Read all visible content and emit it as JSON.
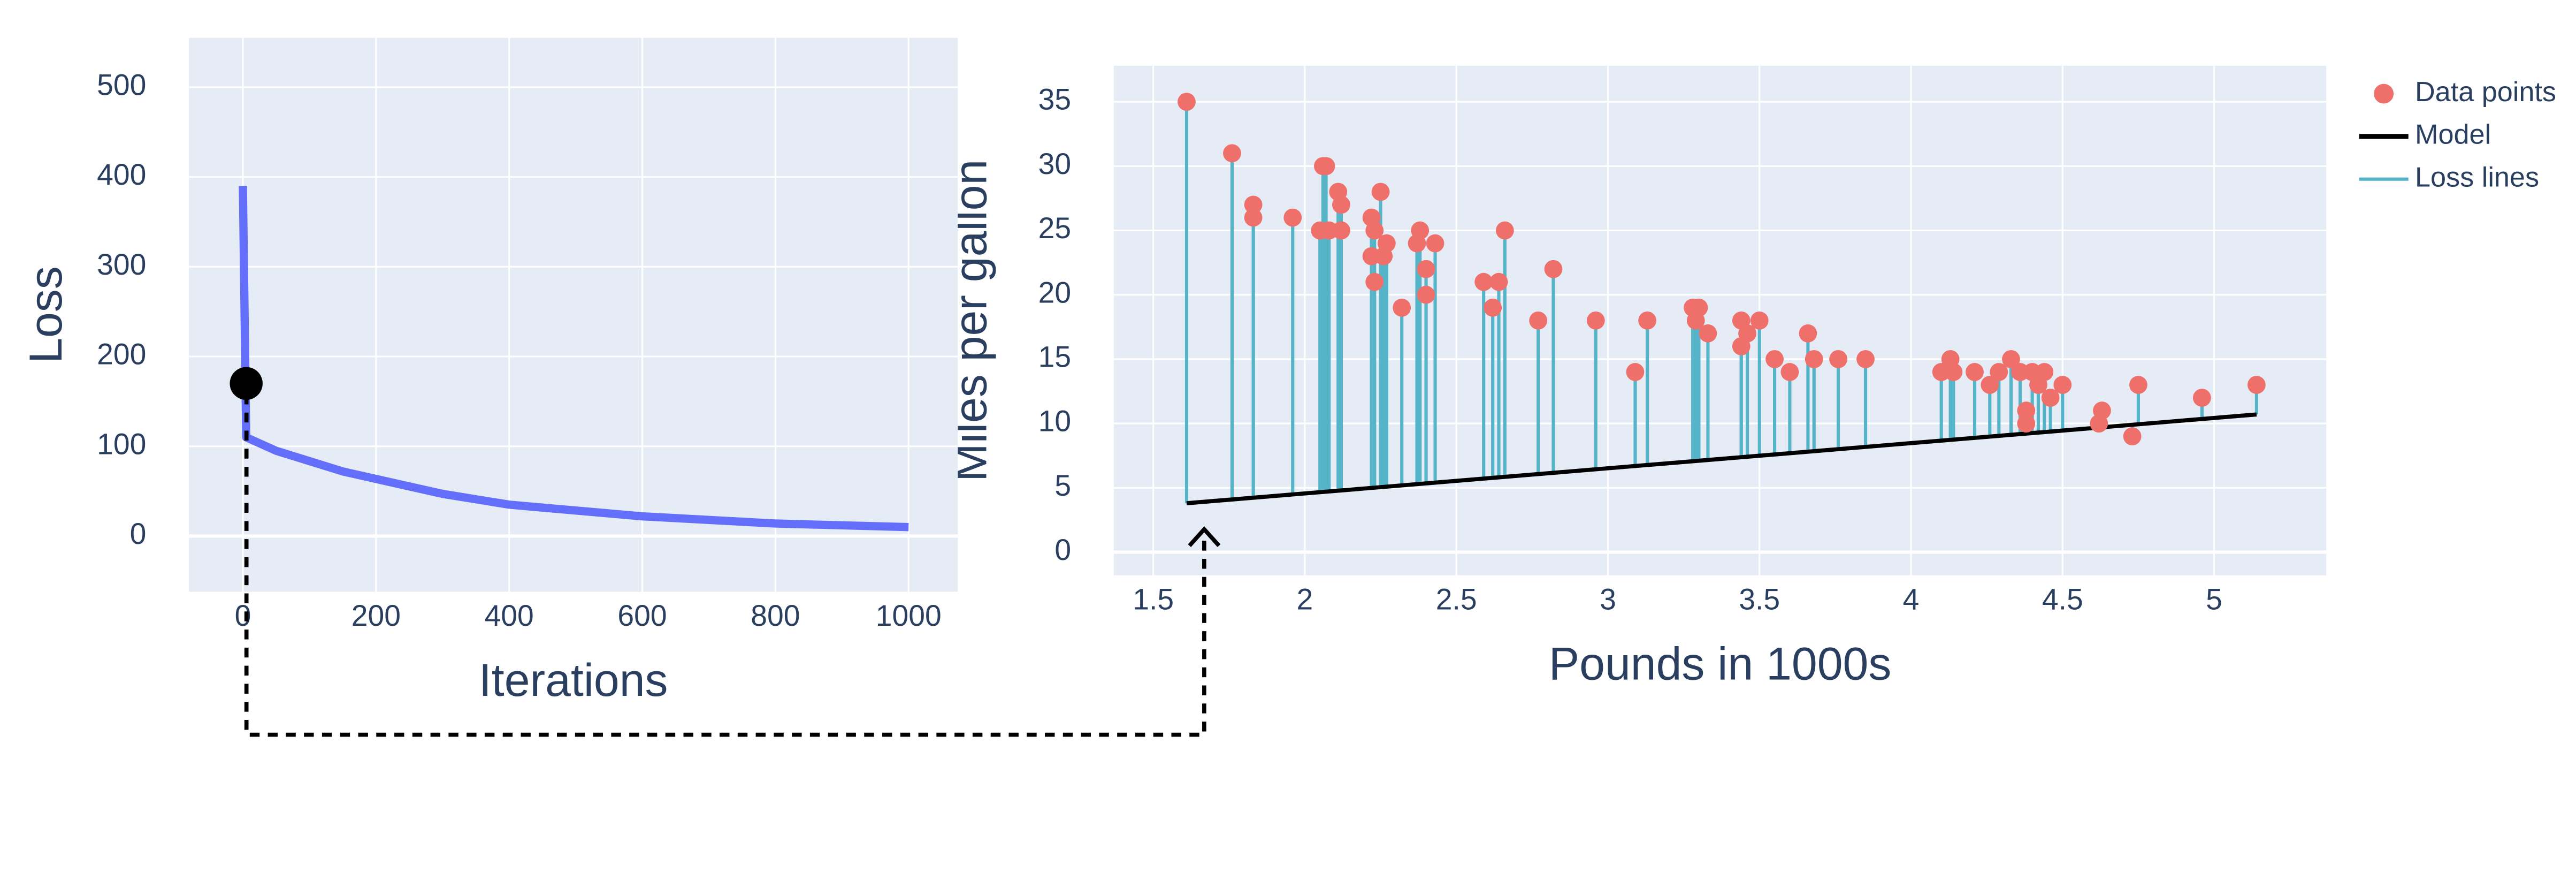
{
  "chart_data": [
    {
      "type": "line",
      "x_label": "Iterations",
      "y_label": "Loss",
      "xlim": [
        -81,
        1074
      ],
      "ylim": [
        -62,
        555
      ],
      "xticks": [
        0,
        200,
        400,
        600,
        800,
        1000
      ],
      "yticks": [
        0,
        100,
        200,
        300,
        400,
        500
      ],
      "grid": true,
      "series": [
        {
          "name": "Loss",
          "color": "#636efa",
          "x": [
            0,
            5,
            50,
            150,
            300,
            400,
            600,
            800,
            1000
          ],
          "values": [
            390,
            110,
            95,
            72,
            47,
            35,
            22,
            14,
            10
          ]
        }
      ],
      "highlight": {
        "x": 5,
        "y": 170,
        "color": "#000000"
      }
    },
    {
      "type": "scatter",
      "x_label": "Pounds in 1000s",
      "y_label": "Miles per gallon",
      "xlim": [
        1.37,
        5.37
      ],
      "ylim": [
        -1.8,
        37.8
      ],
      "xticks": [
        1.5,
        2,
        2.5,
        3,
        3.5,
        4,
        4.5,
        5
      ],
      "yticks": [
        0,
        5,
        10,
        15,
        20,
        25,
        30,
        35
      ],
      "grid": true,
      "legend": "outside-top-right",
      "series": [
        {
          "name": "Data points",
          "type": "scatter",
          "color": "#ef6f6a",
          "x": [
            1.61,
            1.76,
            1.83,
            1.83,
            1.96,
            2.05,
            2.06,
            2.07,
            2.08,
            2.11,
            2.12,
            2.12,
            2.22,
            2.22,
            2.23,
            2.23,
            2.25,
            2.26,
            2.27,
            2.32,
            2.37,
            2.38,
            2.4,
            2.4,
            2.43,
            2.59,
            2.62,
            2.64,
            2.66,
            2.77,
            2.82,
            2.96,
            3.09,
            3.13,
            3.28,
            3.29,
            3.3,
            3.33,
            3.44,
            3.44,
            3.46,
            3.5,
            3.55,
            3.6,
            3.66,
            3.68,
            3.76,
            3.85,
            4.1,
            4.13,
            4.14,
            4.21,
            4.26,
            4.29,
            4.33,
            4.36,
            4.38,
            4.38,
            4.4,
            4.42,
            4.44,
            4.46,
            4.5,
            4.62,
            4.63,
            4.73,
            4.75,
            4.96,
            5.14
          ],
          "values": [
            35,
            31,
            27,
            26,
            26,
            25,
            30,
            30,
            25,
            28,
            27,
            25,
            26,
            23,
            25,
            21,
            28,
            23,
            24,
            19,
            24,
            25,
            22,
            20,
            24,
            21,
            19,
            21,
            25,
            18,
            22,
            18,
            14,
            18,
            19,
            18,
            19,
            17,
            16,
            18,
            17,
            18,
            15,
            14,
            17,
            15,
            15,
            15,
            14,
            15,
            14,
            14,
            13,
            14,
            15,
            14,
            11,
            10,
            14,
            13,
            14,
            12,
            13,
            10,
            11,
            9,
            13,
            12,
            13
          ]
        },
        {
          "name": "Model",
          "type": "line",
          "color": "#000000",
          "x": [
            1.61,
            5.14
          ],
          "values": [
            3.8,
            10.7
          ]
        },
        {
          "name": "Loss lines",
          "type": "loss-lines",
          "color": "#56b4c9"
        }
      ]
    }
  ]
}
